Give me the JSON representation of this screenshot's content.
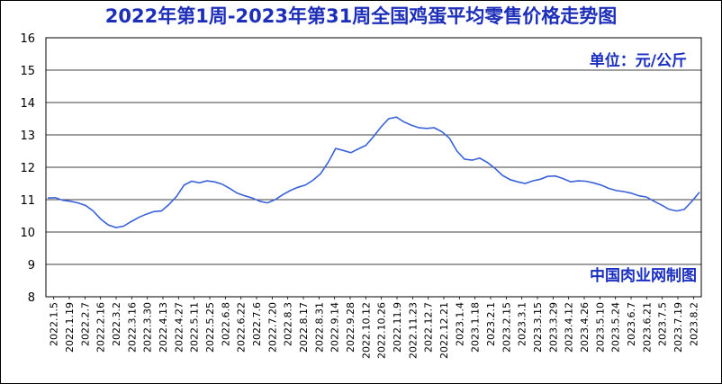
{
  "chart_data": {
    "type": "line",
    "title": "2022年第1周-2023年第31周全国鸡蛋平均零售价格走势图",
    "unit_note": "单位：元/公斤",
    "source_note": "中国肉业网制图",
    "ylim": [
      8,
      16
    ],
    "yticks": [
      "8",
      "9",
      "10",
      "11",
      "12",
      "13",
      "14",
      "15",
      "16"
    ],
    "grid": "horizontal",
    "colors": {
      "line": "#3a62d8",
      "title": "#1d2fb8",
      "annotation": "#1a2fc0"
    },
    "x_tick_labels": [
      "2022.1.5",
      "2022.1.19",
      "2022.2.7",
      "2022.2.16",
      "2022.3.2",
      "2022.3.16",
      "2022.3.30",
      "2022.4.13",
      "2022.4.27",
      "2022.5.11",
      "2022.5.25",
      "2022.6.8",
      "2022.6.22",
      "2022.7.6",
      "2022.7.20",
      "2022.8.3",
      "2022.8.17",
      "2022.8.31",
      "2022.9.14",
      "2022.9.28",
      "2022.10.12",
      "2022.10.26",
      "2022.11.9",
      "2022.11.23",
      "2022.12.7",
      "2022.12.21",
      "2023.1.4",
      "2023.1.18",
      "2023.2.1",
      "2023.2.15",
      "2023.3.1",
      "2023.3.15",
      "2023.3.29",
      "2023.4.12",
      "2023.4.26",
      "2023.5.10",
      "2023.5.24",
      "2023.6.7",
      "2023.6.21",
      "2023.7.5",
      "2023.7.19",
      "2023.8.2"
    ],
    "series": [
      {
        "values": [
          11.05,
          11.06,
          10.98,
          10.95,
          10.9,
          10.82,
          10.65,
          10.4,
          10.22,
          10.14,
          10.18,
          10.32,
          10.45,
          10.55,
          10.63,
          10.65,
          10.85,
          11.1,
          11.45,
          11.57,
          11.52,
          11.58,
          11.55,
          11.48,
          11.35,
          11.2,
          11.12,
          11.05,
          10.95,
          10.9,
          11.0,
          11.15,
          11.28,
          11.38,
          11.45,
          11.6,
          11.8,
          12.15,
          12.58,
          12.52,
          12.45,
          12.57,
          12.68,
          12.95,
          13.25,
          13.5,
          13.55,
          13.4,
          13.3,
          13.22,
          13.2,
          13.22,
          13.1,
          12.9,
          12.5,
          12.25,
          12.22,
          12.28,
          12.15,
          11.97,
          11.75,
          11.62,
          11.55,
          11.5,
          11.58,
          11.63,
          11.72,
          11.73,
          11.65,
          11.55,
          11.58,
          11.57,
          11.52,
          11.45,
          11.35,
          11.28,
          11.25,
          11.2,
          11.12,
          11.08,
          10.95,
          10.83,
          10.7,
          10.65,
          10.7,
          10.95,
          11.23
        ]
      }
    ]
  }
}
